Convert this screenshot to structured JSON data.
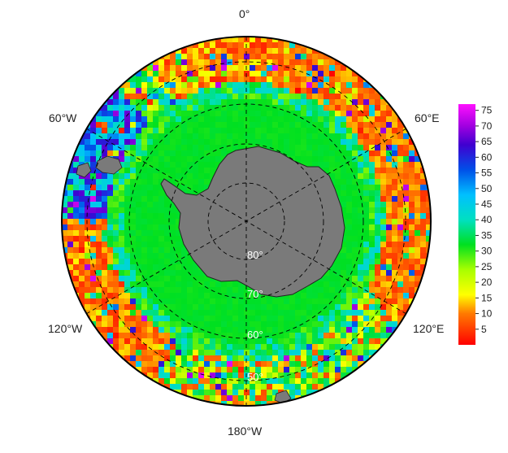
{
  "map": {
    "projection": "south-polar-stereographic",
    "longitude_labels": {
      "top": "0°",
      "upper_left": "60°W",
      "upper_right": "60°E",
      "lower_left": "120°W",
      "lower_right": "120°E",
      "bottom": "180°W"
    },
    "latitude_labels": [
      "80°",
      "70°",
      "60°",
      "50°"
    ],
    "colors": {
      "land": "#7a7a7a",
      "ocean_near_ice": "#00e020",
      "grid": "#000000"
    }
  },
  "colorbar": {
    "ticks": [
      "75",
      "70",
      "65",
      "60",
      "55",
      "50",
      "45",
      "40",
      "35",
      "30",
      "25",
      "20",
      "15",
      "10",
      "5"
    ],
    "min": 0,
    "max": 77,
    "stops": [
      {
        "v": 0,
        "color": "#ff0000"
      },
      {
        "v": 10,
        "color": "#ff7a00"
      },
      {
        "v": 16,
        "color": "#ffff00"
      },
      {
        "v": 24,
        "color": "#a8ff00"
      },
      {
        "v": 32,
        "color": "#00e020"
      },
      {
        "v": 40,
        "color": "#00e0c0"
      },
      {
        "v": 48,
        "color": "#00c0ff"
      },
      {
        "v": 56,
        "color": "#0050e8"
      },
      {
        "v": 64,
        "color": "#4000d0"
      },
      {
        "v": 70,
        "color": "#a000e0"
      },
      {
        "v": 77,
        "color": "#ff10ff"
      }
    ]
  }
}
